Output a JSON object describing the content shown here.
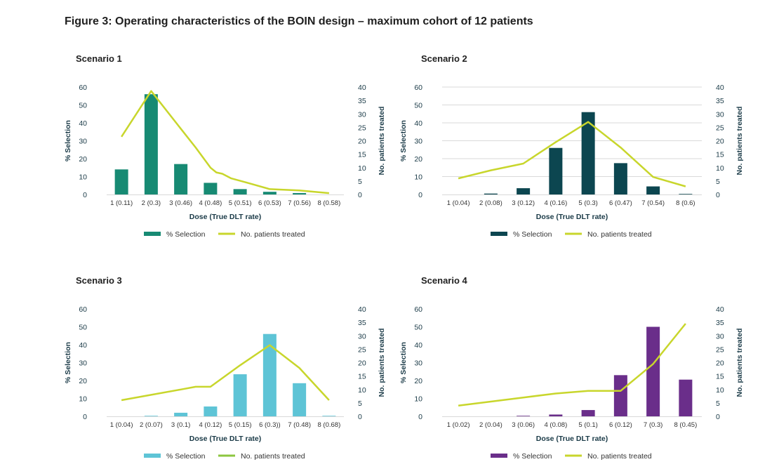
{
  "figure_title": "Figure 3: Operating characteristics of the BOIN design – maximum cohort of 12 patients",
  "colors": {
    "line": "#c8d62c",
    "grid": "#d9d9d9",
    "axis_text": "#1a3a47"
  },
  "chart_data": [
    {
      "type": "bar",
      "title": "Scenario 1",
      "xlabel": "Dose (True DLT rate)",
      "ylabel": "% Selection",
      "y2label": "No. patients treated",
      "ylim": [
        0,
        60
      ],
      "yticks": [
        0,
        10,
        20,
        30,
        40,
        50,
        60
      ],
      "y2lim": [
        0,
        40
      ],
      "y2ticks": [
        0,
        5,
        10,
        15,
        20,
        25,
        30,
        35,
        40
      ],
      "grid": false,
      "categories": [
        "1 (0.11)",
        "2 (0.3)",
        "3 (0.46)",
        "4 (0.48)",
        "5 (0.51)",
        "6 (0.53)",
        "7 (0.56)",
        "8 (0.58)"
      ],
      "bar_color": "#178a73",
      "line_color": "#c8d62c",
      "series": [
        {
          "name": "% Selection",
          "kind": "bar",
          "values": [
            14,
            56,
            17,
            6.5,
            3,
            1.5,
            0.8,
            0
          ]
        },
        {
          "name": "No. patients treated",
          "kind": "line",
          "x": [
            0,
            1,
            2,
            2.5,
            3,
            3.2,
            3.4,
            3.7,
            4.2,
            5,
            6,
            7
          ],
          "values": [
            21.5,
            38.5,
            24.5,
            17.5,
            10,
            8.2,
            7.7,
            6,
            4.5,
            2,
            1.5,
            0.5
          ]
        }
      ],
      "legend": [
        "% Selection",
        "No. patients treated"
      ]
    },
    {
      "type": "bar",
      "title": "Scenario 2",
      "xlabel": "Dose (True DLT rate)",
      "ylabel": "% Selection",
      "y2label": "No. patients treated",
      "ylim": [
        0,
        60
      ],
      "yticks": [
        0,
        10,
        20,
        30,
        40,
        50,
        60
      ],
      "y2lim": [
        0,
        40
      ],
      "y2ticks": [
        0,
        5,
        10,
        15,
        20,
        25,
        30,
        35,
        40
      ],
      "grid": true,
      "categories": [
        "1 (0.04)",
        "2 (0.08)",
        "3 (0.12)",
        "4 (0.16)",
        "5 (0.3)",
        "6 (0.47)",
        "7 (0.54)",
        "8 (0.6)"
      ],
      "bar_color": "#0c4650",
      "line_color": "#c8d62c",
      "series": [
        {
          "name": "% Selection",
          "kind": "bar",
          "values": [
            0,
            0.5,
            3.5,
            26,
            46,
            17.5,
            4.5,
            0.3
          ]
        },
        {
          "name": "No. patients treated",
          "kind": "line",
          "x": [
            0,
            1,
            2,
            3,
            4,
            5,
            6,
            7
          ],
          "values": [
            6,
            9,
            11.5,
            19.5,
            27,
            17.5,
            6.5,
            3
          ]
        }
      ],
      "legend": [
        "% Selection",
        "No. patients treated"
      ]
    },
    {
      "type": "bar",
      "title": "Scenario 3",
      "xlabel": "Dose (True DLT rate)",
      "ylabel": "% Selection",
      "y2label": "No. patients treated",
      "ylim": [
        0,
        60
      ],
      "yticks": [
        0,
        10,
        20,
        30,
        40,
        50,
        60
      ],
      "y2lim": [
        0,
        40
      ],
      "y2ticks": [
        0,
        5,
        10,
        15,
        20,
        25,
        30,
        35,
        40
      ],
      "grid": false,
      "categories": [
        "1 (0.04)",
        "2 (0.07)",
        "3 (0.1)",
        "4 (0.12)",
        "5 (0.15)",
        "6 (0.3))",
        "7 (0.48)",
        "8 (0.68)"
      ],
      "bar_color": "#5ec4d6",
      "line_color": "#c8d62c",
      "legend_line_color": "#8cc63f",
      "series": [
        {
          "name": "% Selection",
          "kind": "bar",
          "values": [
            0,
            0.3,
            2,
            5.5,
            23.5,
            46,
            18.5,
            0.3
          ]
        },
        {
          "name": "No. patients treated",
          "kind": "line",
          "x": [
            0,
            1,
            2,
            2.5,
            3,
            4,
            5,
            6,
            7
          ],
          "values": [
            6,
            8,
            10,
            11,
            11,
            19,
            26.5,
            18,
            6
          ]
        }
      ],
      "legend": [
        "% Selection",
        "No. patients treated"
      ]
    },
    {
      "type": "bar",
      "title": "Scenario 4",
      "xlabel": "Dose (True DLT rate)",
      "ylabel": "% Selection",
      "y2label": "No. patients treated",
      "ylim": [
        0,
        60
      ],
      "yticks": [
        0,
        10,
        20,
        30,
        40,
        50,
        60
      ],
      "y2lim": [
        0,
        40
      ],
      "y2ticks": [
        0,
        5,
        10,
        15,
        20,
        25,
        30,
        35,
        40
      ],
      "grid": false,
      "categories": [
        "1 (0.02)",
        "2 (0.04)",
        "3 (0.06)",
        "4 (0.08)",
        "5 (0.1)",
        "6 (0.12)",
        "7 (0.3)",
        "8 (0.45)"
      ],
      "bar_color": "#6a2e8a",
      "line_color": "#c8d62c",
      "series": [
        {
          "name": "% Selection",
          "kind": "bar",
          "values": [
            0,
            0,
            0.3,
            1,
            3.5,
            23,
            50,
            20.5
          ]
        },
        {
          "name": "No. patients treated",
          "kind": "line",
          "x": [
            0,
            1,
            2,
            3,
            4,
            5,
            6,
            7
          ],
          "values": [
            4,
            5.5,
            7,
            8.5,
            9.5,
            9.5,
            19.5,
            34.5
          ]
        }
      ],
      "legend": [
        "% Selection",
        "No. patients treated"
      ]
    }
  ]
}
